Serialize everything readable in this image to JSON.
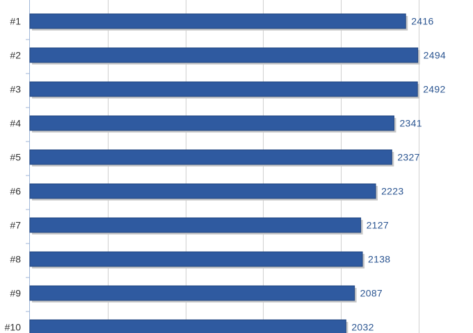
{
  "chart_data": {
    "type": "bar",
    "orientation": "horizontal",
    "categories": [
      "#1",
      "#2",
      "#3",
      "#4",
      "#5",
      "#6",
      "#7",
      "#8",
      "#9",
      "#10"
    ],
    "series": [
      {
        "values": [
          2416,
          2494,
          2492,
          2341,
          2327,
          2223,
          2127,
          2138,
          2087,
          2032
        ]
      }
    ],
    "xlim": [
      0,
      2500
    ],
    "gridlines": "vertical",
    "data_labels": true
  },
  "colors": {
    "bar": "#2f5aa0",
    "bar_edge": "#22467f",
    "bar_shadow": "#c8c8c8",
    "value_label": "#2b5591",
    "gridline": "#d0d0d0",
    "axis": "#9fb6d8"
  }
}
